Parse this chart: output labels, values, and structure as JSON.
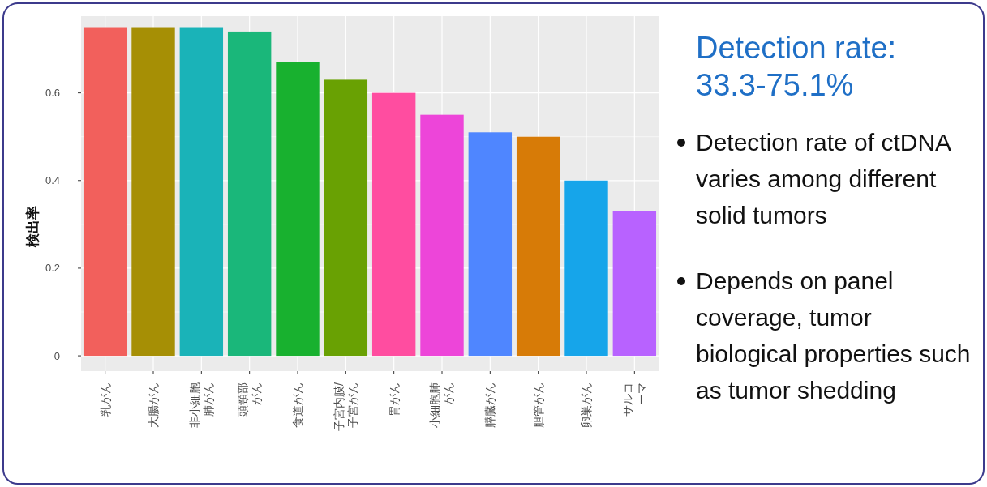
{
  "chart_data": {
    "type": "bar",
    "title": "Detection rate: 33.3-75.1%",
    "ylabel": "検出率",
    "categories": [
      "乳がん",
      "大腸がん",
      "非小細胞肺がん",
      "頭頸部がん",
      "食道がん",
      "子宮内膜/子宮がん",
      "胃がん",
      "小細胞肺がん",
      "膵臓がん",
      "胆管がん",
      "卵巣がん",
      "サルコーマ"
    ],
    "values": [
      0.75,
      0.75,
      0.75,
      0.74,
      0.67,
      0.63,
      0.6,
      0.55,
      0.51,
      0.5,
      0.4,
      0.33
    ],
    "colors": [
      "#f2605c",
      "#a68f05",
      "#1ab3b8",
      "#1ab77a",
      "#18b12f",
      "#69a103",
      "#ff4da0",
      "#ed45d9",
      "#4f86ff",
      "#d77b07",
      "#16a5ea",
      "#b862ff"
    ],
    "ylim": [
      -0.035,
      0.775
    ],
    "yticks": [
      0,
      {
        "value": 0.1,
        "label": null
      },
      {
        "value": 0.2,
        "label": "0.2"
      },
      {
        "value": 0.3,
        "label": null
      },
      {
        "value": 0.4,
        "label": "0.4"
      },
      {
        "value": 0.5,
        "label": null
      },
      {
        "value": 0.6,
        "label": "0.6"
      },
      {
        "value": 0.7,
        "label": null
      }
    ],
    "grid": true,
    "annotations": [
      "Detection rate of ctDNA varies among different solid tumors",
      "Depends on panel coverage, tumor biological properties such as tumor shedding"
    ]
  }
}
